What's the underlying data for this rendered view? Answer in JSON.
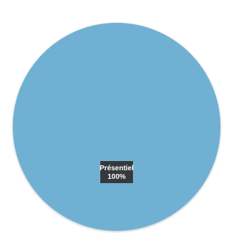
{
  "chart_data": {
    "type": "pie",
    "slices": [
      {
        "label": "Présentiel",
        "value": 100,
        "value_label": "100%",
        "color": "#6fb1d3"
      }
    ],
    "title": "",
    "legend": false
  }
}
